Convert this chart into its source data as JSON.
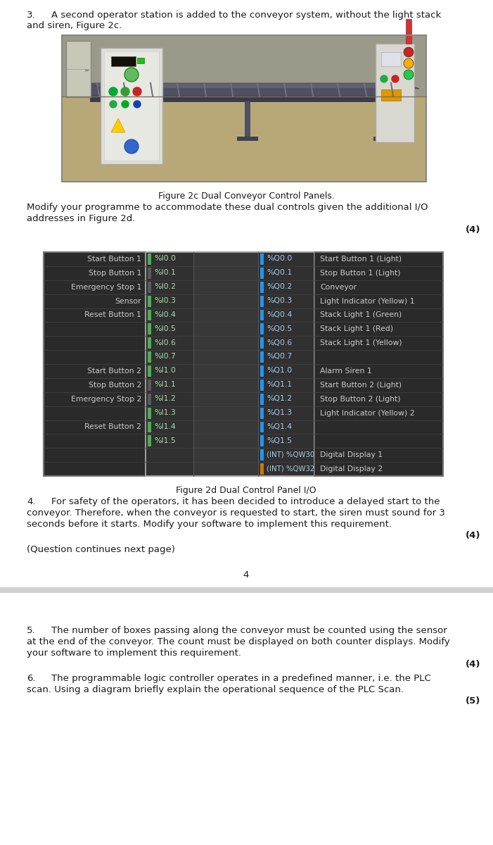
{
  "page_bg": "#ffffff",
  "text_color": "#1a1a1a",
  "q3_num": "3.",
  "q3_line1": "A second operator station is added to the conveyor system, without the light stack",
  "q3_line2": "and siren, Figure 2c.",
  "fig2c_caption": "Figure 2c Dual Conveyor Control Panels.",
  "modify_line1": "Modify your programme to accommodate these dual controls given the additional I/O",
  "modify_line2": "addresses in Figure 2d.",
  "marks3": "(4)",
  "io_rows": [
    [
      "Start Button 1",
      "%I0.0",
      "%Q0.0",
      "Start Button 1 (Light)"
    ],
    [
      "Stop Button 1",
      "%I0.1",
      "%Q0.1",
      "Stop Button 1 (Light)"
    ],
    [
      "Emergency Stop 1",
      "%I0.2",
      "%Q0.2",
      "Conveyor"
    ],
    [
      "Sensor",
      "%I0.3",
      "%Q0.3",
      "Light Indicator (Yellow) 1"
    ],
    [
      "Reset Button 1",
      "%I0.4",
      "%Q0.4",
      "Stack Light 1 (Green)"
    ],
    [
      "",
      "%I0.5",
      "%Q0.5",
      "Stack Light 1 (Red)"
    ],
    [
      "",
      "%I0.6",
      "%Q0.6",
      "Stack Light 1 (Yellow)"
    ],
    [
      "",
      "%I0.7",
      "%Q0.7",
      ""
    ],
    [
      "Start Button 2",
      "%I1.0",
      "%Q1.0",
      "Alarm Siren 1"
    ],
    [
      "Stop Button 2",
      "%I1.1",
      "%Q1.1",
      "Start Button 2 (Light)"
    ],
    [
      "Emergency Stop 2",
      "%I1.2",
      "%Q1.2",
      "Stop Button 2 (Light)"
    ],
    [
      "",
      "%I1.3",
      "%Q1.3",
      "Light Indicator (Yellow) 2"
    ],
    [
      "Reset Button 2",
      "%I1.4",
      "%Q1.4",
      ""
    ],
    [
      "",
      "%I1.5",
      "%Q1.5",
      ""
    ],
    [
      "",
      "",
      "(INT) %QW30",
      "Digital Display 1"
    ],
    [
      "",
      "",
      "(INT) %QW32",
      "Digital Display 2"
    ]
  ],
  "input_bar_colors": [
    "#4caf50",
    "#5a5a5a",
    "#5a5a5a",
    "#4caf50",
    "#4caf50",
    "#4caf50",
    "#4caf50",
    "#4caf50",
    "#4caf50",
    "#5a5a5a",
    "#5a5a5a",
    "#4caf50",
    "#4caf50",
    "#4caf50"
  ],
  "out_bar_color14": "#2196f3",
  "out_bar_color15": "#cc7700",
  "fig2d_caption": "Figure 2d Dual Control Panel I/O",
  "q4_num": "4.",
  "q4_line1": "For safety of the operators, it has been decided to introduce a delayed start to the",
  "q4_line2": "conveyor. Therefore, when the conveyor is requested to start, the siren must sound for 3",
  "q4_line3": "seconds before it starts. Modify your software to implement this requirement.",
  "marks4": "(4)",
  "continues": "(Question continues next page)",
  "page_num": "4",
  "q5_num": "5.",
  "q5_line1": "The number of boxes passing along the conveyor must be counted using the sensor",
  "q5_line2": "at the end of the conveyor. The count must be displayed on both counter displays. Modify",
  "q5_line3": "your software to implement this requirement.",
  "marks5": "(4)",
  "q6_num": "6.",
  "q6_line1": "The programmable logic controller operates in a predefined manner, i.e. the PLC",
  "q6_line2": "scan. Using a diagram briefly explain the operational sequence of the PLC Scan.",
  "marks6": "(5)",
  "body_fs": 9.5,
  "caption_fs": 9.0,
  "table_fs": 7.8,
  "marks_fs": 9.5
}
